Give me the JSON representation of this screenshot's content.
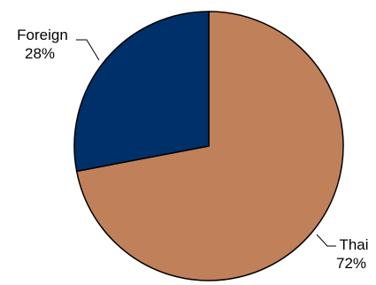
{
  "chart_data": {
    "type": "pie",
    "categories": [
      "Thai",
      "Foreign"
    ],
    "values": [
      72,
      28
    ],
    "data_labels": [
      "72%",
      "28%"
    ],
    "colors": [
      "#C0805A",
      "#00306A"
    ],
    "title": "",
    "legend": "none"
  }
}
